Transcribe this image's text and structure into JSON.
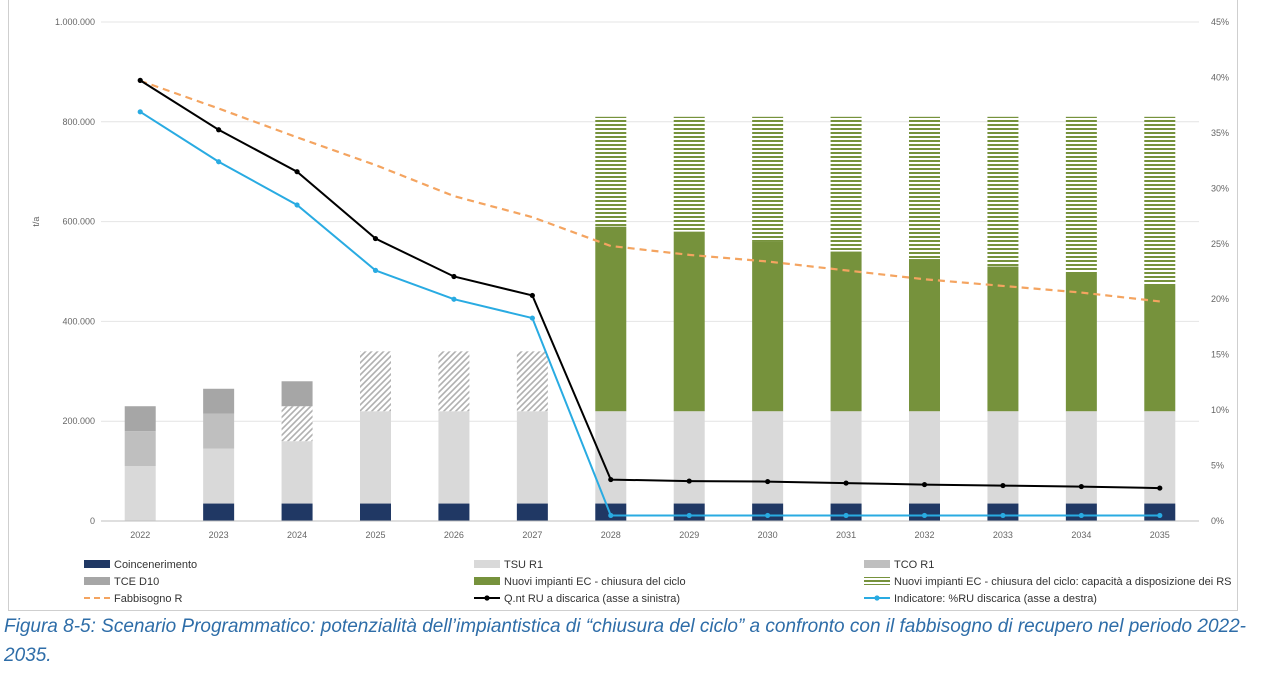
{
  "caption": "Figura 8-5: Scenario Programmatico: potenzialità dell’impiantistica di “chiusura del ciclo” a confronto con il fabbisogno di recupero nel periodo 2022-2035.",
  "chart_data": {
    "type": "bar",
    "stacked": true,
    "title": "",
    "ylabel": "t/a",
    "y2label": "",
    "categories": [
      "2022",
      "2023",
      "2024",
      "2025",
      "2026",
      "2027",
      "2028",
      "2029",
      "2030",
      "2031",
      "2032",
      "2033",
      "2034",
      "2035"
    ],
    "ylim": [
      0,
      1000000
    ],
    "y_ticks": [
      0,
      200000,
      400000,
      600000,
      800000,
      1000000
    ],
    "y_tick_labels": [
      "0",
      "200.000",
      "400.000",
      "600.000",
      "800.000",
      "1.000.000"
    ],
    "y2lim": [
      0,
      45
    ],
    "y2_ticks": [
      0,
      5,
      10,
      15,
      20,
      25,
      30,
      35,
      40,
      45
    ],
    "y2_tick_labels": [
      "0%",
      "5%",
      "10%",
      "15%",
      "20%",
      "25%",
      "30%",
      "35%",
      "40%",
      "45%"
    ],
    "grid": true,
    "legend_position": "bottom",
    "series": [
      {
        "name": "Coincenerimento",
        "kind": "bar",
        "color": "#203864",
        "pattern": "solid",
        "values": [
          0,
          35000,
          35000,
          35000,
          35000,
          35000,
          35000,
          35000,
          35000,
          35000,
          35000,
          35000,
          35000,
          35000
        ]
      },
      {
        "name": "TSU R1",
        "kind": "bar",
        "color": "#d9d9d9",
        "pattern": "solid",
        "values": [
          110000,
          110000,
          125000,
          185000,
          185000,
          185000,
          185000,
          185000,
          185000,
          185000,
          185000,
          185000,
          185000,
          185000
        ]
      },
      {
        "name": "TCO R1",
        "kind": "bar",
        "color": "#bfbfbf",
        "pattern": "solid",
        "values": [
          70000,
          70000,
          0,
          0,
          0,
          0,
          0,
          0,
          0,
          0,
          0,
          0,
          0,
          0
        ]
      },
      {
        "name": "TCO R1 (hatched)",
        "kind": "bar",
        "color": "#bfbfbf",
        "pattern": "diagonal",
        "legend": false,
        "values": [
          0,
          0,
          70000,
          120000,
          120000,
          120000,
          0,
          0,
          0,
          0,
          0,
          0,
          0,
          0
        ]
      },
      {
        "name": "TCE D10",
        "kind": "bar",
        "color": "#a6a6a6",
        "pattern": "solid",
        "values": [
          50000,
          50000,
          50000,
          0,
          0,
          0,
          0,
          0,
          0,
          0,
          0,
          0,
          0,
          0
        ]
      },
      {
        "name": "Nuovi impianti EC - chiusura del ciclo",
        "kind": "bar",
        "color": "#76923c",
        "pattern": "solid",
        "values": [
          0,
          0,
          0,
          0,
          0,
          0,
          370000,
          360000,
          340000,
          320000,
          305000,
          290000,
          275000,
          255000
        ]
      },
      {
        "name": "Nuovi impianti EC - chiusura del ciclo: capacità a disposizione dei RS",
        "kind": "bar",
        "color": "#76923c",
        "pattern": "horizontal",
        "values": [
          0,
          0,
          0,
          0,
          0,
          0,
          220000,
          230000,
          250000,
          270000,
          285000,
          300000,
          315000,
          335000
        ]
      },
      {
        "name": "Fabbisogno R",
        "kind": "line",
        "axis": "right",
        "color": "#f4a460",
        "dash": true,
        "values": [
          39.7,
          37.2,
          34.6,
          32.1,
          29.3,
          27.4,
          24.8,
          24.0,
          23.4,
          22.6,
          21.8,
          21.2,
          20.6,
          19.8
        ]
      },
      {
        "name": "Q.nt RU a discarica (asse a sinistra)",
        "kind": "line",
        "axis": "left",
        "color": "#000000",
        "values": [
          883000,
          784000,
          700000,
          566000,
          490000,
          452000,
          83000,
          80000,
          79000,
          76000,
          73000,
          71000,
          69000,
          66000
        ]
      },
      {
        "name": "Indicatore: %RU discarica (asse a destra)",
        "kind": "line",
        "axis": "right",
        "color": "#29abe2",
        "values": [
          36.9,
          32.4,
          28.5,
          22.6,
          20.0,
          18.3,
          0.5,
          0.5,
          0.5,
          0.5,
          0.5,
          0.5,
          0.5,
          0.5
        ]
      }
    ],
    "legend": [
      "Coincenerimento",
      "TSU R1",
      "TCO R1",
      "TCE D10",
      "Nuovi impianti EC - chiusura del ciclo",
      "Nuovi impianti EC - chiusura del ciclo: capacità a disposizione dei RS",
      "Fabbisogno R",
      "Q.nt RU a discarica (asse a sinistra)",
      "Indicatore: %RU discarica (asse a destra)"
    ]
  }
}
